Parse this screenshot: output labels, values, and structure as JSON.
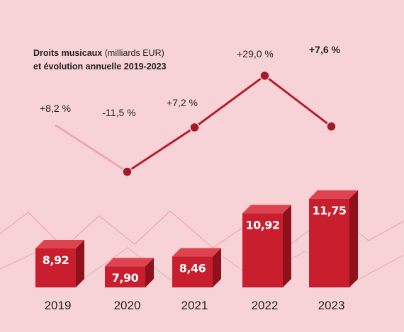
{
  "title": {
    "bold": "Droits musicaux",
    "normal": " (milliards EUR)",
    "line2": "et évolution annuelle 2019-2023"
  },
  "colors": {
    "background": "#f7d3d7",
    "bar_front": "#c81e2d",
    "bar_side": "#8f111c",
    "bar_top": "#de4450",
    "line": "#b51f2c",
    "marker": "#a3182a"
  },
  "chart_data": {
    "type": "bar",
    "categories": [
      "2019",
      "2020",
      "2021",
      "2022",
      "2023"
    ],
    "values": [
      8.92,
      7.9,
      8.46,
      10.92,
      11.75
    ],
    "value_labels": [
      "8,92",
      "7,90",
      "8,46",
      "10,92",
      "11,75"
    ],
    "unit": "milliards EUR",
    "growth": {
      "values": [
        8.2,
        -11.5,
        7.2,
        29.0,
        7.6
      ],
      "labels": [
        "+8,2 %",
        "-11,5 %",
        "+7,2 %",
        "+29,0 %",
        "+7,6 %"
      ],
      "highlighted_last": true
    }
  }
}
